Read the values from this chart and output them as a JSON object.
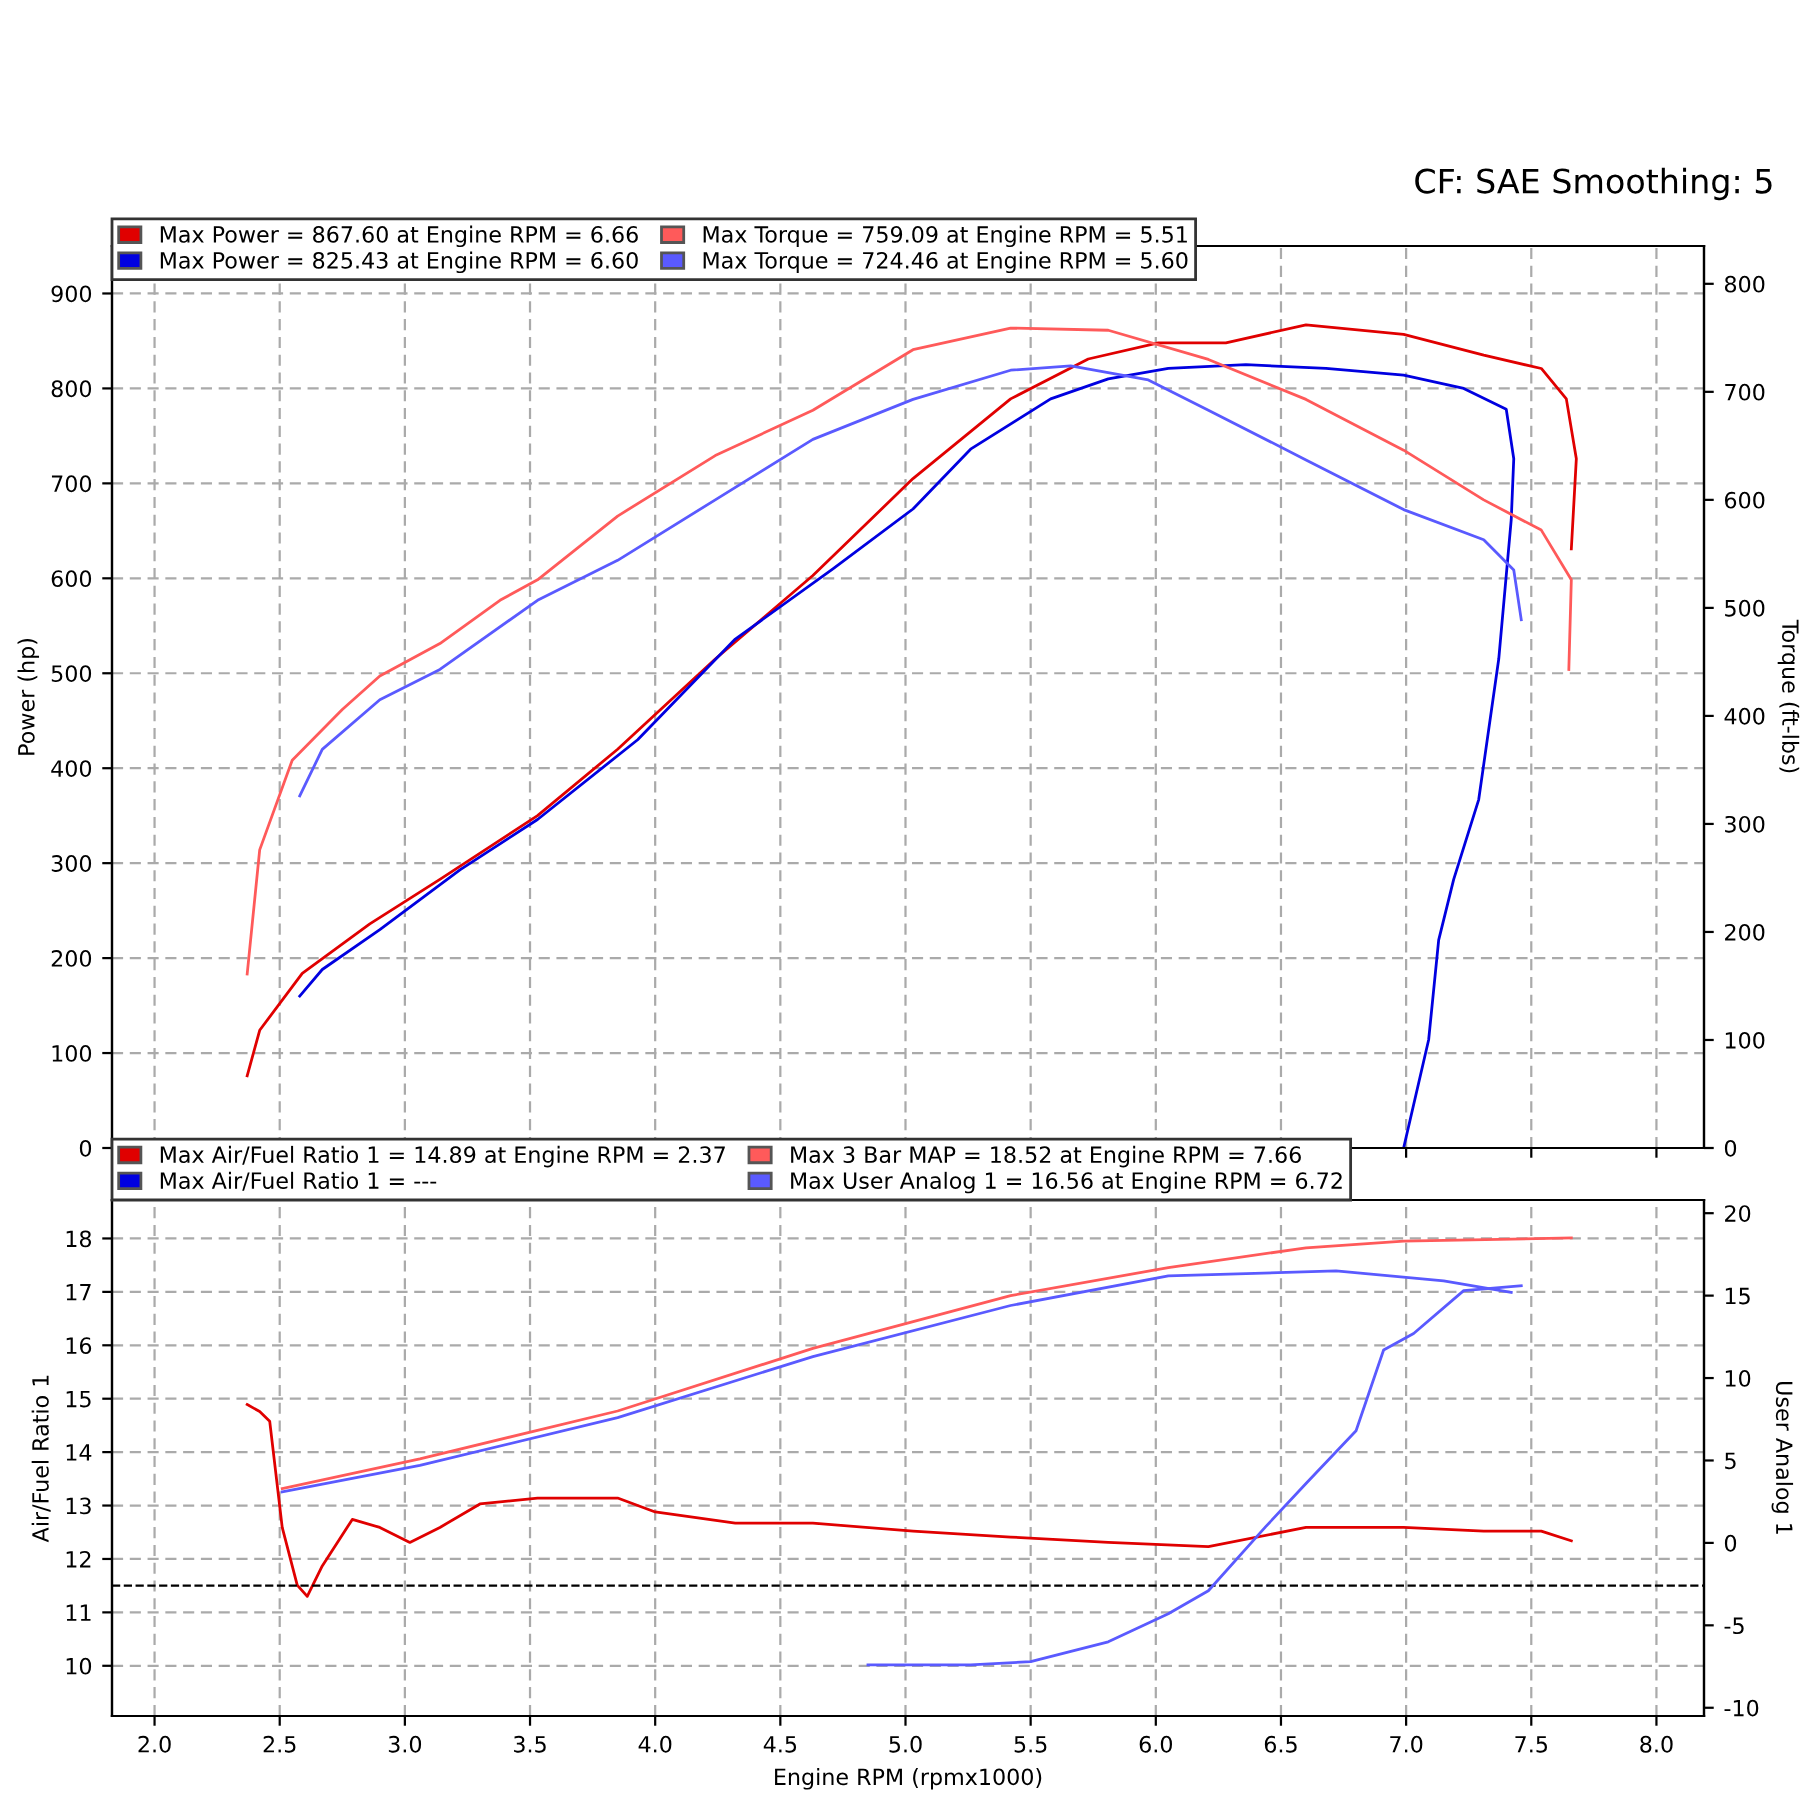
{
  "chart_data": [
    {
      "type": "line",
      "annotations": [
        "CF: SAE Smoothing: 5"
      ],
      "ylabel": "Power (hp)",
      "y2label": "Torque (ft-lbs)",
      "xlim": [
        1.83,
        8.19
      ],
      "xticks": [
        {
          "value": 2,
          "label": null
        },
        {
          "value": 2.5,
          "label": null
        },
        {
          "value": 3,
          "label": null
        },
        {
          "value": 3.5,
          "label": null
        },
        {
          "value": 4,
          "label": null
        },
        {
          "value": 4.5,
          "label": null
        },
        {
          "value": 5,
          "label": null
        },
        {
          "value": 5.5,
          "label": null
        },
        {
          "value": 6,
          "label": null
        },
        {
          "value": 6.5,
          "label": null
        },
        {
          "value": 7,
          "label": null
        },
        {
          "value": 7.5,
          "label": null
        },
        {
          "value": 8,
          "label": null
        }
      ],
      "ylim": [
        0,
        950
      ],
      "yticks": [
        0,
        100,
        200,
        300,
        400,
        500,
        600,
        700,
        800,
        900
      ],
      "y2lim": [
        0,
        835
      ],
      "y2ticks": [
        0,
        100,
        200,
        300,
        400,
        500,
        600,
        700,
        800
      ],
      "tick_labels": "y",
      "grid": true,
      "legend": "top left",
      "line_style": "solid",
      "marker": "none",
      "series": [
        {
          "name": "Max Power = 867.60 at Engine RPM = 6.66",
          "color": "#e00000",
          "x": [
            2.37,
            2.42,
            2.59,
            2.86,
            3.14,
            3.53,
            3.85,
            4.24,
            4.63,
            5.03,
            5.42,
            5.73,
            6.01,
            6.28,
            6.6,
            6.99,
            7.31,
            7.54,
            7.64,
            7.68,
            7.66
          ],
          "values": [
            76,
            124,
            184,
            236,
            283,
            350,
            420,
            515,
            603,
            705,
            789,
            831,
            848,
            848,
            867,
            857,
            835,
            821,
            789,
            726,
            631
          ]
        },
        {
          "name": "Max Power = 825.43 at Engine RPM = 6.60",
          "color": "#0000e0",
          "x": [
            2.58,
            2.67,
            2.9,
            3.22,
            3.53,
            3.93,
            4.32,
            4.71,
            5.03,
            5.26,
            5.58,
            5.81,
            6.05,
            6.36,
            6.68,
            6.99,
            7.23,
            7.4,
            7.43,
            7.42,
            7.37,
            7.29,
            7.19,
            7.13,
            7.09,
            6.99
          ],
          "values": [
            160,
            188,
            230,
            293,
            346,
            430,
            536,
            610,
            673,
            736,
            789,
            810,
            821,
            825,
            821,
            814,
            800,
            778,
            726,
            662,
            515,
            367,
            283,
            219,
            114,
            0
          ]
        },
        {
          "name": "Max Torque = 759.09 at Engine RPM = 5.51",
          "color": "#ff5a5a",
          "axis": "y2",
          "x": [
            2.37,
            2.42,
            2.55,
            2.75,
            2.9,
            3.14,
            3.38,
            3.53,
            3.85,
            4.24,
            4.63,
            5.03,
            5.42,
            5.81,
            6.21,
            6.6,
            6.99,
            7.31,
            7.54,
            7.66,
            7.65
          ],
          "values": [
            161,
            276,
            359,
            406,
            437,
            467,
            507,
            526,
            585,
            641,
            683,
            739,
            759,
            757,
            730,
            693,
            646,
            600,
            572,
            526,
            443
          ]
        },
        {
          "name": "Max Torque = 724.46 at Engine RPM = 5.60",
          "color": "#5a5aff",
          "axis": "y2",
          "x": [
            2.58,
            2.67,
            2.9,
            3.14,
            3.53,
            3.85,
            4.24,
            4.63,
            5.03,
            5.42,
            5.66,
            5.97,
            6.21,
            6.6,
            6.99,
            7.31,
            7.43,
            7.46
          ],
          "values": [
            326,
            369,
            415,
            443,
            507,
            544,
            600,
            656,
            693,
            720,
            724,
            711,
            683,
            637,
            591,
            563,
            535,
            489
          ]
        }
      ]
    },
    {
      "type": "line",
      "xlabel": "Engine RPM (rpmx1000)",
      "ylabel": "Air/Fuel Ratio 1",
      "y2label": "User Analog 1",
      "xlim": [
        1.83,
        8.19
      ],
      "xticks": [
        {
          "value": 2,
          "label": "2.0"
        },
        {
          "value": 2.5,
          "label": "2.5"
        },
        {
          "value": 3,
          "label": "3.0"
        },
        {
          "value": 3.5,
          "label": "3.5"
        },
        {
          "value": 4,
          "label": "4.0"
        },
        {
          "value": 4.5,
          "label": "4.5"
        },
        {
          "value": 5,
          "label": "5.0"
        },
        {
          "value": 5.5,
          "label": "5.5"
        },
        {
          "value": 6,
          "label": "6.0"
        },
        {
          "value": 6.5,
          "label": "6.5"
        },
        {
          "value": 7,
          "label": "7.0"
        },
        {
          "value": 7.5,
          "label": "7.5"
        },
        {
          "value": 8,
          "label": "8.0"
        }
      ],
      "ylim": [
        9.06,
        18.72
      ],
      "yticks": [
        10,
        11,
        12,
        13,
        14,
        15,
        16,
        17,
        18
      ],
      "y2lim": [
        -10.5,
        20.8
      ],
      "y2ticks": [
        -10,
        -5,
        0,
        5,
        10,
        15,
        20
      ],
      "grid": true,
      "legend": "top left",
      "line_style": "solid",
      "marker": "none",
      "ref_lines": [
        {
          "axis": "y",
          "value": 11.5,
          "color": "#000000",
          "line_style": "dashed"
        }
      ],
      "series": [
        {
          "name": "Max Air/Fuel Ratio 1 = 14.89 at Engine RPM = 2.37",
          "color": "#e00000",
          "x": [
            2.37,
            2.42,
            2.46,
            2.51,
            2.57,
            2.61,
            2.67,
            2.79,
            2.9,
            3.02,
            3.14,
            3.3,
            3.53,
            3.85,
            4.0,
            4.32,
            4.63,
            5.03,
            5.42,
            5.81,
            6.21,
            6.6,
            6.99,
            7.31,
            7.54,
            7.66
          ],
          "values": [
            14.89,
            14.76,
            14.58,
            12.59,
            11.51,
            11.3,
            11.87,
            12.74,
            12.59,
            12.31,
            12.59,
            13.03,
            13.14,
            13.14,
            12.88,
            12.67,
            12.67,
            12.52,
            12.41,
            12.31,
            12.23,
            12.59,
            12.59,
            12.52,
            12.52,
            12.34
          ]
        },
        {
          "name": "Max Air/Fuel Ratio 1 = ---",
          "color": "#0000e0"
        },
        {
          "name": "Max 3 Bar MAP = 18.52 at Engine RPM = 7.66",
          "color": "#ff5a5a",
          "axis": "y2",
          "x": [
            2.51,
            3.06,
            3.85,
            4.63,
            5.42,
            6.05,
            6.6,
            6.99,
            7.66
          ],
          "values": [
            3.3,
            5.1,
            8.0,
            11.8,
            15.0,
            16.7,
            17.9,
            18.3,
            18.5
          ]
        },
        {
          "name": "Max User Analog 1 = 16.56 at Engine RPM = 6.72",
          "color": "#5a5aff",
          "axis": "y2",
          "x": [
            2.51,
            3.06,
            3.85,
            4.63,
            5.42,
            6.05,
            6.72,
            7.15,
            7.42
          ],
          "values": [
            3.1,
            4.7,
            7.6,
            11.3,
            14.4,
            16.2,
            16.5,
            15.9,
            15.2
          ]
        },
        {
          "color": "#5a5aff",
          "axis": "y2",
          "x": [
            4.85,
            5.26,
            5.5,
            5.81,
            6.05,
            6.21,
            6.44,
            6.6,
            6.8,
            6.91,
            7.03,
            7.23,
            7.46
          ],
          "values": [
            -7.4,
            -7.4,
            -7.2,
            -6.0,
            -4.3,
            -2.9,
            1.0,
            3.6,
            6.8,
            11.7,
            12.7,
            15.3,
            15.6
          ]
        }
      ]
    }
  ]
}
